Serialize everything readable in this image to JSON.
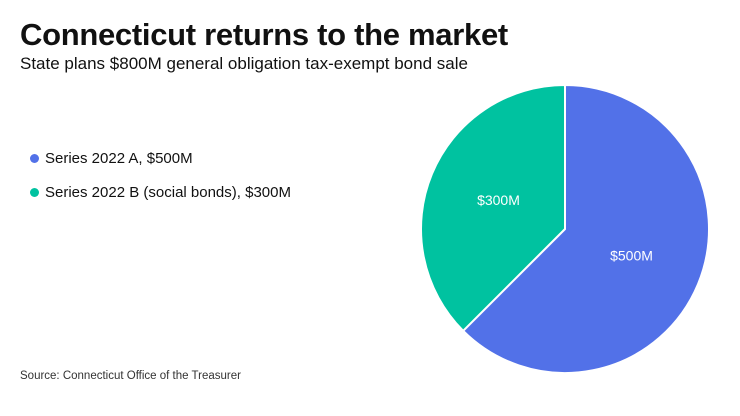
{
  "header": {
    "title": "Connecticut returns to the market",
    "subtitle": "State plans $800M general obligation tax-exempt bond sale"
  },
  "footer": {
    "source": "Source: Connecticut Office of the Treasurer"
  },
  "chart_data": {
    "type": "pie",
    "title": "Connecticut returns to the market",
    "subtitle": "State plans $800M general obligation tax-exempt bond sale",
    "legend_position": "left",
    "series": [
      {
        "name": "Series 2022 A, $500M",
        "value": 500,
        "label": "$500M",
        "color": "#5271e8"
      },
      {
        "name": "Series 2022 B (social bonds), $300M",
        "value": 300,
        "label": "$300M",
        "color": "#00c2a0"
      }
    ],
    "start_angle_deg": 0,
    "direction": "clockwise",
    "slice_border_color": "#ffffff"
  }
}
